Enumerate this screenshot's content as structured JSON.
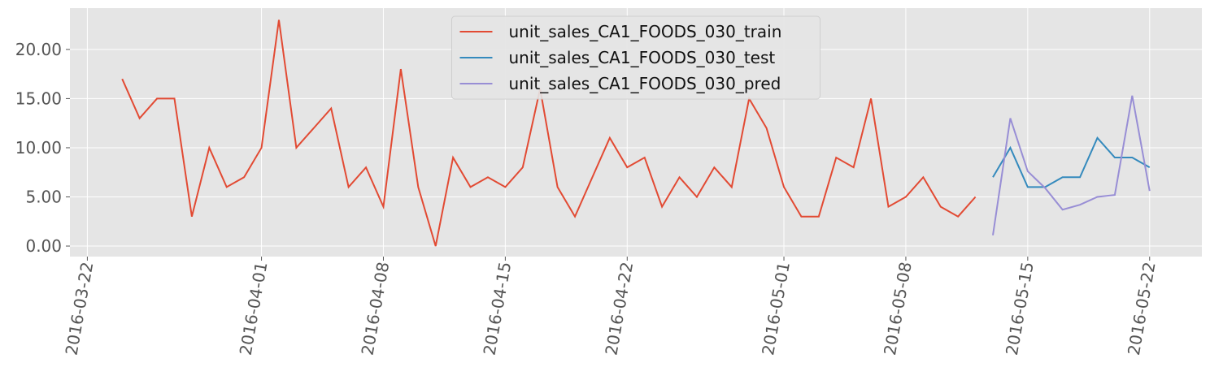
{
  "chart_data": {
    "type": "line",
    "x": [
      "2016-03-24",
      "2016-03-25",
      "2016-03-26",
      "2016-03-27",
      "2016-03-28",
      "2016-03-29",
      "2016-03-30",
      "2016-03-31",
      "2016-04-01",
      "2016-04-02",
      "2016-04-03",
      "2016-04-04",
      "2016-04-05",
      "2016-04-06",
      "2016-04-07",
      "2016-04-08",
      "2016-04-09",
      "2016-04-10",
      "2016-04-11",
      "2016-04-12",
      "2016-04-13",
      "2016-04-14",
      "2016-04-15",
      "2016-04-16",
      "2016-04-17",
      "2016-04-18",
      "2016-04-19",
      "2016-04-20",
      "2016-04-21",
      "2016-04-22",
      "2016-04-23",
      "2016-04-24",
      "2016-04-25",
      "2016-04-26",
      "2016-04-27",
      "2016-04-28",
      "2016-04-29",
      "2016-04-30",
      "2016-05-01",
      "2016-05-02",
      "2016-05-03",
      "2016-05-04",
      "2016-05-05",
      "2016-05-06",
      "2016-05-07",
      "2016-05-08",
      "2016-05-09",
      "2016-05-10",
      "2016-05-11",
      "2016-05-12",
      "2016-05-13",
      "2016-05-14",
      "2016-05-15",
      "2016-05-16",
      "2016-05-17",
      "2016-05-18",
      "2016-05-19",
      "2016-05-20",
      "2016-05-21",
      "2016-05-22"
    ],
    "series": [
      {
        "name": "unit_sales_CA1_FOODS_030_train",
        "color": "#E24A33",
        "values": [
          17,
          13,
          15,
          15,
          3,
          10,
          6,
          7,
          10,
          23,
          10,
          12,
          14,
          6,
          8,
          4,
          18,
          6,
          0,
          9,
          6,
          7,
          6,
          8,
          16,
          6,
          3,
          7,
          11,
          8,
          9,
          4,
          7,
          5,
          8,
          6,
          15,
          12,
          6,
          3,
          3,
          9,
          8,
          15,
          4,
          5,
          7,
          4,
          3,
          5,
          null,
          null,
          null,
          null,
          null,
          null,
          null,
          null,
          null,
          null
        ]
      },
      {
        "name": "unit_sales_CA1_FOODS_030_test",
        "color": "#348ABD",
        "values": [
          null,
          null,
          null,
          null,
          null,
          null,
          null,
          null,
          null,
          null,
          null,
          null,
          null,
          null,
          null,
          null,
          null,
          null,
          null,
          null,
          null,
          null,
          null,
          null,
          null,
          null,
          null,
          null,
          null,
          null,
          null,
          null,
          null,
          null,
          null,
          null,
          null,
          null,
          null,
          null,
          null,
          null,
          null,
          null,
          null,
          null,
          null,
          null,
          null,
          null,
          7,
          10,
          6,
          6,
          7,
          7,
          11,
          9,
          9,
          8
        ]
      },
      {
        "name": "unit_sales_CA1_FOODS_030_pred",
        "color": "#988ED5",
        "values": [
          null,
          null,
          null,
          null,
          null,
          null,
          null,
          null,
          null,
          null,
          null,
          null,
          null,
          null,
          null,
          null,
          null,
          null,
          null,
          null,
          null,
          null,
          null,
          null,
          null,
          null,
          null,
          null,
          null,
          null,
          null,
          null,
          null,
          null,
          null,
          null,
          null,
          null,
          null,
          null,
          null,
          null,
          null,
          null,
          null,
          null,
          null,
          null,
          null,
          null,
          1.1,
          13,
          7.6,
          5.9,
          3.7,
          4.2,
          5.0,
          5.2,
          15.3,
          5.6
        ]
      }
    ],
    "xlim": [
      "2016-03-21",
      "2016-05-25"
    ],
    "xticks": [
      "2016-03-22",
      "2016-04-01",
      "2016-04-08",
      "2016-04-15",
      "2016-04-22",
      "2016-05-01",
      "2016-05-08",
      "2016-05-15",
      "2016-05-22"
    ],
    "ylim": [
      -1.07,
      24.2
    ],
    "yticks": [
      {
        "value": 0,
        "label": "0.00"
      },
      {
        "value": 5,
        "label": "5.00"
      },
      {
        "value": 10,
        "label": "10.00"
      },
      {
        "value": 15,
        "label": "15.00"
      },
      {
        "value": 20,
        "label": "20.00"
      }
    ],
    "grid": true,
    "legend": "upper center"
  }
}
